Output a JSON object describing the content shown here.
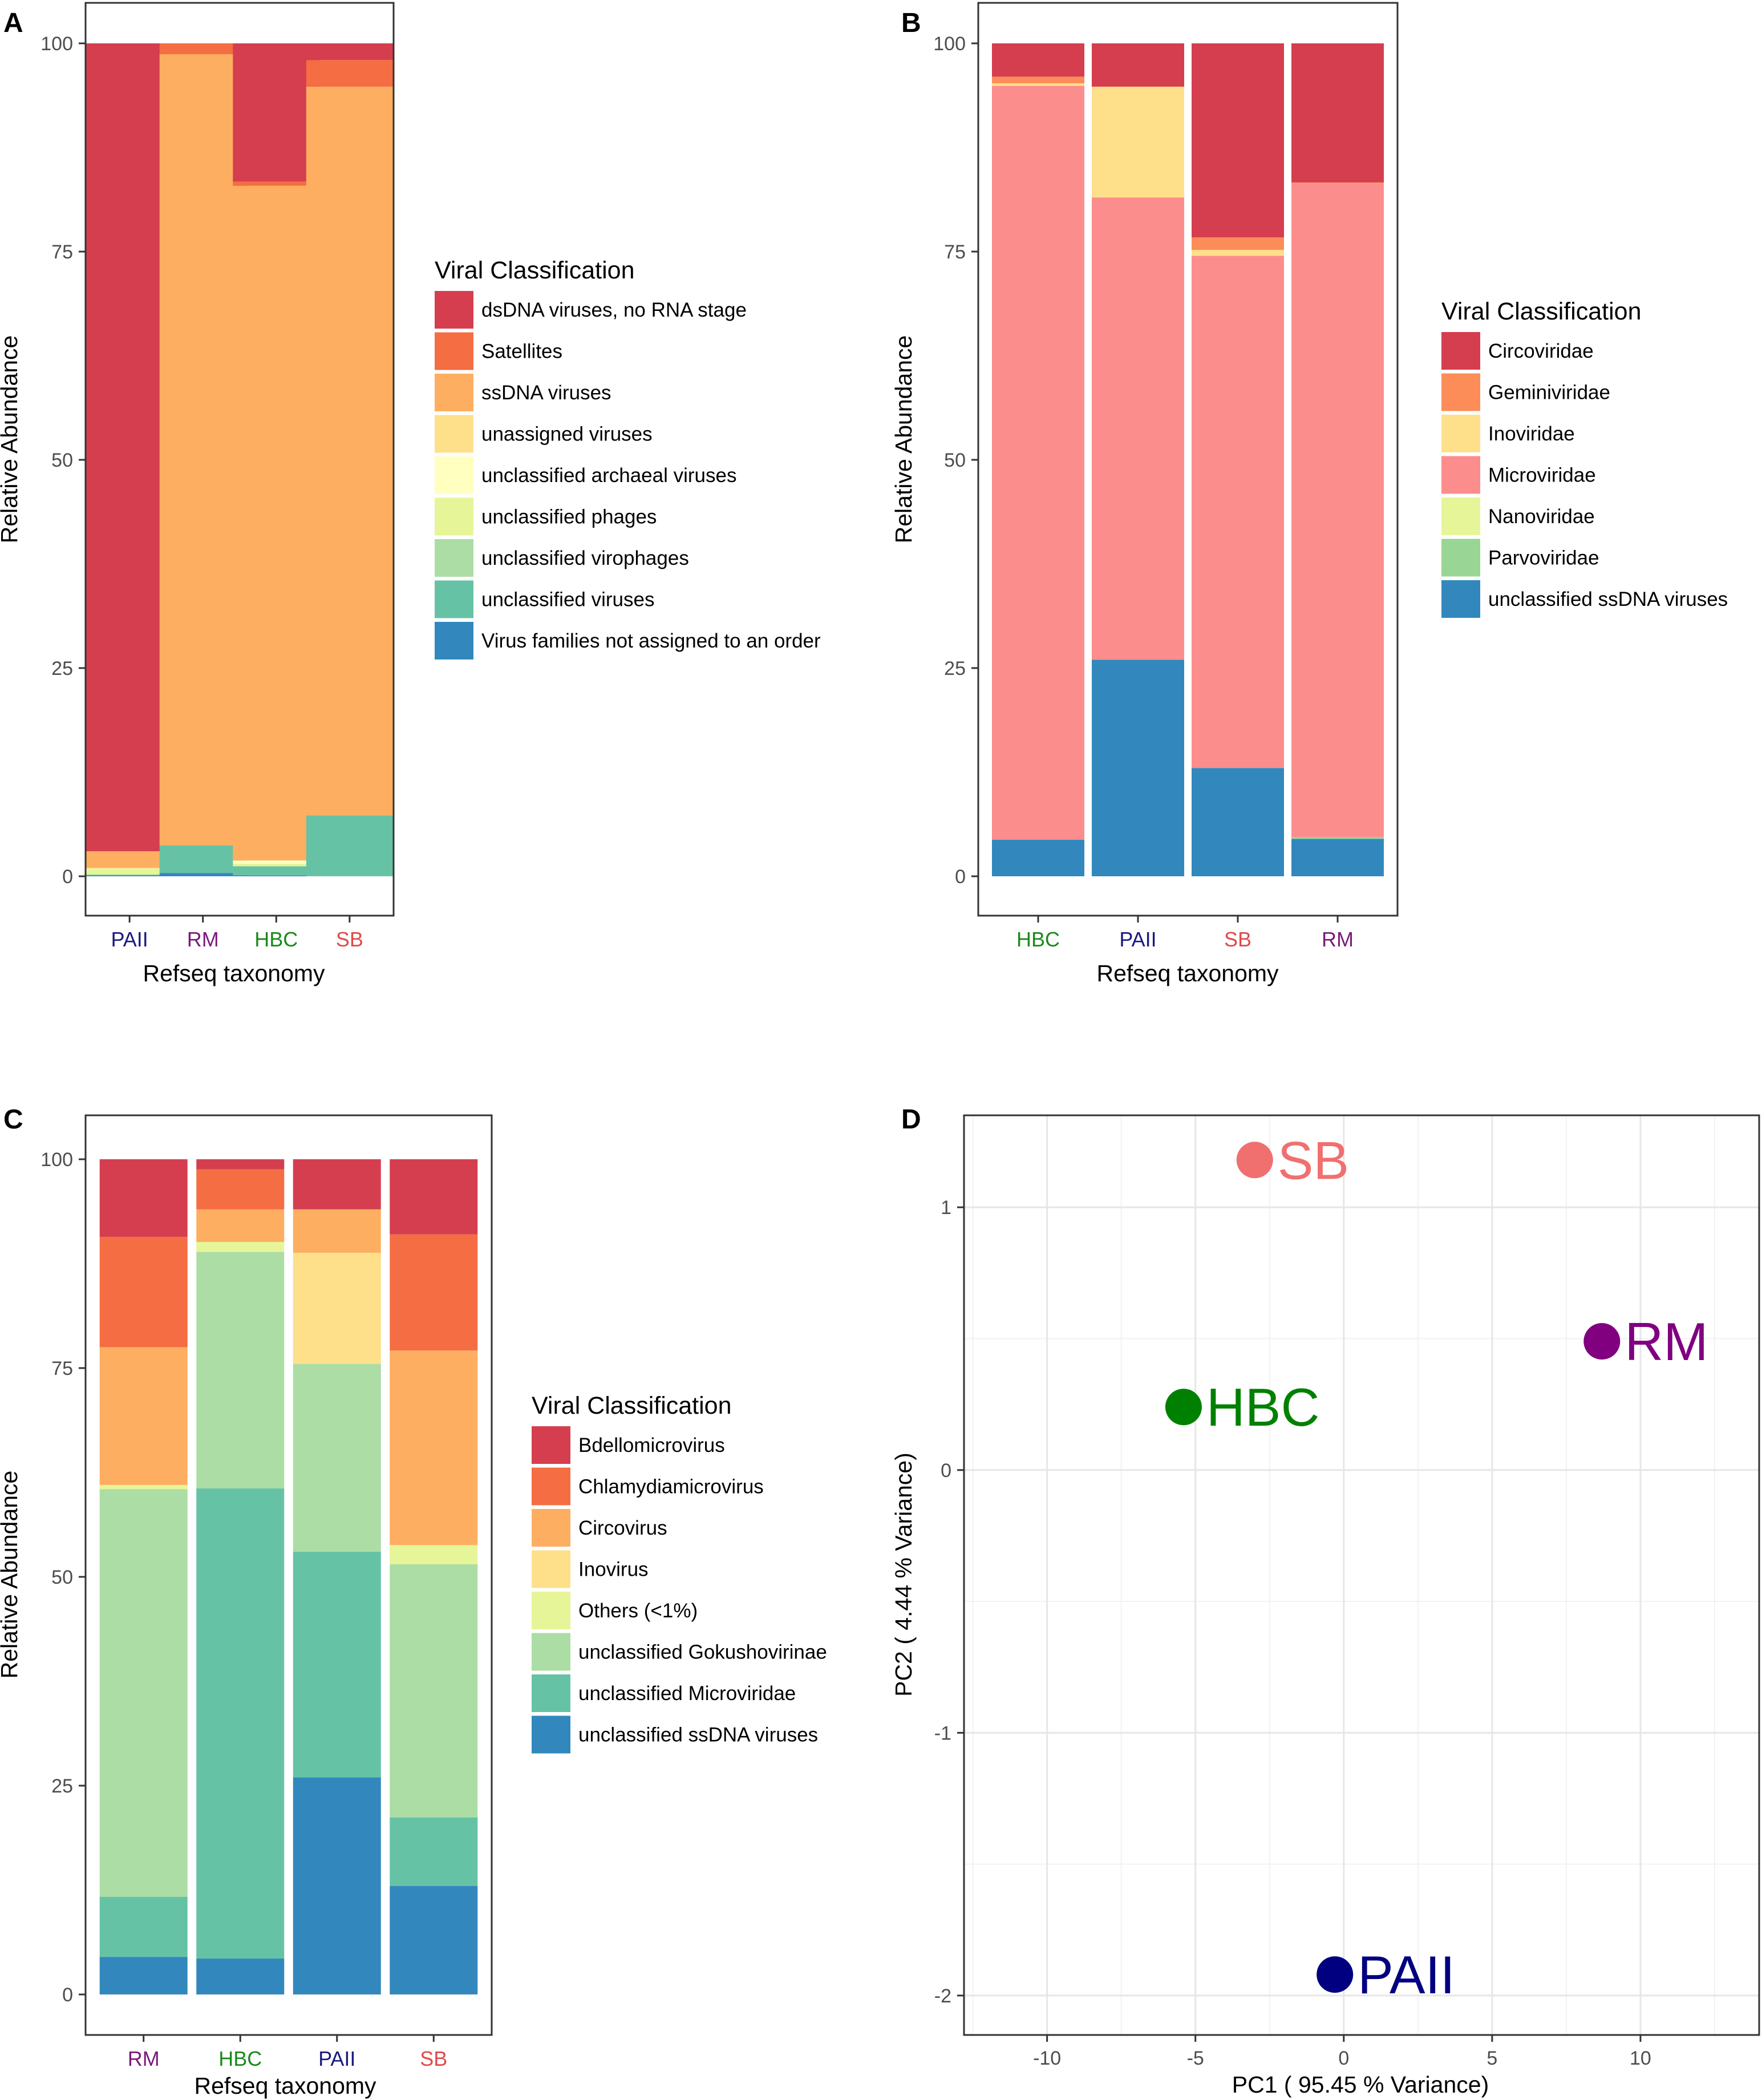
{
  "panels": [
    {
      "label": "A",
      "chart_data": {
        "type": "bar",
        "stacked": true,
        "xlabel": "Refseq taxonomy",
        "ylabel": "Relative Abundance",
        "ylim": [
          0,
          100
        ],
        "yticks": [
          "0",
          "25",
          "50",
          "75",
          "100"
        ],
        "categories": [
          "PAII",
          "RM",
          "HBC",
          "SB"
        ],
        "category_colors": [
          "#1a1a80",
          "#7a1a7a",
          "#1a8a1a",
          "#e04a4a"
        ],
        "legend_title": "Viral Classification",
        "series": [
          {
            "name": "Virus families not assigned to an order",
            "color": "#3288bd",
            "values": [
              0.1,
              0.4,
              0.1,
              0
            ]
          },
          {
            "name": "unclassified viruses",
            "color": "#66c2a5",
            "values": [
              0.1,
              3.3,
              1.1,
              7.3
            ]
          },
          {
            "name": "unclassified virophages",
            "color": "#abdda4",
            "values": [
              0,
              0,
              0,
              0
            ]
          },
          {
            "name": "unclassified phages",
            "color": "#e6f598",
            "values": [
              0.8,
              0,
              0.3,
              0
            ]
          },
          {
            "name": "unclassified archaeal viruses",
            "color": "#ffffbf",
            "values": [
              0,
              0,
              0.4,
              0
            ]
          },
          {
            "name": "unassigned viruses",
            "color": "#fee08b",
            "values": [
              0,
              0,
              0,
              0
            ]
          },
          {
            "name": "ssDNA viruses",
            "color": "#fdae61",
            "values": [
              2,
              95,
              81,
              87.5
            ]
          },
          {
            "name": "Satellites",
            "color": "#f46d43",
            "values": [
              0,
              1.3,
              0.5,
              3.2
            ]
          },
          {
            "name": "dsDNA viruses, no RNA stage",
            "color": "#d53e4f",
            "values": [
              97,
              0,
              16.6,
              2
            ]
          }
        ],
        "legend_order": [
          "dsDNA viruses, no RNA stage",
          "Satellites",
          "ssDNA viruses",
          "unassigned viruses",
          "unclassified archaeal viruses",
          "unclassified phages",
          "unclassified virophages",
          "unclassified viruses",
          "Virus families not assigned to an order"
        ]
      }
    },
    {
      "label": "B",
      "chart_data": {
        "type": "bar",
        "stacked": true,
        "xlabel": "Refseq taxonomy",
        "ylabel": "Relative Abundance",
        "ylim": [
          0,
          100
        ],
        "yticks": [
          "0",
          "25",
          "50",
          "75",
          "100"
        ],
        "categories": [
          "HBC",
          "PAII",
          "SB",
          "RM"
        ],
        "category_colors": [
          "#1a8a1a",
          "#1a1a80",
          "#e04a4a",
          "#7a1a7a"
        ],
        "legend_title": "Viral Classification",
        "series": [
          {
            "name": "unclassified ssDNA viruses",
            "color": "#3288bd",
            "values": [
              4.4,
              26,
              13,
              4.5
            ]
          },
          {
            "name": "Parvoviridae",
            "color": "#99d594",
            "values": [
              0,
              0,
              0,
              0.2
            ]
          },
          {
            "name": "Nanoviridae",
            "color": "#e6f598",
            "values": [
              0,
              0,
              0,
              0
            ]
          },
          {
            "name": "Microviridae",
            "color": "#fc8d8d",
            "values": [
              90.5,
              55.5,
              61.5,
              78.5
            ]
          },
          {
            "name": "Inoviridae",
            "color": "#fee08b",
            "values": [
              0.3,
              13.3,
              0.7,
              0
            ]
          },
          {
            "name": "Geminiviridae",
            "color": "#fc8d59",
            "values": [
              0.8,
              0,
              1.5,
              0.1
            ]
          },
          {
            "name": "Circoviridae",
            "color": "#d53e4f",
            "values": [
              4,
              5.2,
              23.3,
              16.7
            ]
          }
        ],
        "legend_order": [
          "Circoviridae",
          "Geminiviridae",
          "Inoviridae",
          "Microviridae",
          "Nanoviridae",
          "Parvoviridae",
          "unclassified ssDNA viruses"
        ]
      }
    },
    {
      "label": "C",
      "chart_data": {
        "type": "bar",
        "stacked": true,
        "xlabel": "Refseq taxonomy",
        "ylabel": "Relative Abundance",
        "ylim": [
          0,
          100
        ],
        "yticks": [
          "0",
          "25",
          "50",
          "75",
          "100"
        ],
        "categories": [
          "RM",
          "HBC",
          "PAII",
          "SB"
        ],
        "category_colors": [
          "#7a1a7a",
          "#1a8a1a",
          "#1a1a80",
          "#e04a4a"
        ],
        "legend_title": "Viral Classification",
        "series": [
          {
            "name": "unclassified ssDNA viruses",
            "color": "#3288bd",
            "values": [
              4.5,
              4.3,
              26,
              13
            ]
          },
          {
            "name": "unclassified Microviridae",
            "color": "#66c2a5",
            "values": [
              7.2,
              56.3,
              27,
              8.2
            ]
          },
          {
            "name": "unclassified Gokushovirinae",
            "color": "#abdda4",
            "values": [
              48.8,
              28.3,
              22.5,
              30.3
            ]
          },
          {
            "name": "Others (<1%)",
            "color": "#e6f598",
            "values": [
              0.5,
              1.2,
              0,
              2.3
            ]
          },
          {
            "name": "Inovirus",
            "color": "#fee08b",
            "values": [
              0,
              0,
              13.3,
              0
            ]
          },
          {
            "name": "Circovirus",
            "color": "#fdae61",
            "values": [
              16.5,
              3.9,
              5.2,
              23.3
            ]
          },
          {
            "name": "Chlamydiamicrovirus",
            "color": "#f46d43",
            "values": [
              13.2,
              4.8,
              0,
              13.9
            ]
          },
          {
            "name": "Bdellomicrovirus",
            "color": "#d53e4f",
            "values": [
              9.3,
              1.2,
              6,
              9
            ]
          }
        ],
        "legend_order": [
          "Bdellomicrovirus",
          "Chlamydiamicrovirus",
          "Circovirus",
          "Inovirus",
          "Others (<1%)",
          "unclassified Gokushovirinae",
          "unclassified Microviridae",
          "unclassified ssDNA viruses"
        ]
      }
    },
    {
      "label": "D",
      "chart_data": {
        "type": "scatter",
        "xlabel": "PC1 ( 95.45  % Variance)",
        "ylabel": "PC2 ( 4.44  % Variance)",
        "xlim": [
          -12.8,
          14
        ],
        "ylim": [
          -2.15,
          1.35
        ],
        "xticks": [
          "-10",
          "-5",
          "0",
          "5",
          "10"
        ],
        "yticks": [
          "-2",
          "-1",
          "0",
          "1"
        ],
        "points": [
          {
            "label": "SB",
            "x": -3.0,
            "y": 1.18,
            "color": "#f07070"
          },
          {
            "label": "RM",
            "x": 8.7,
            "y": 0.49,
            "color": "#800080"
          },
          {
            "label": "HBC",
            "x": -5.4,
            "y": 0.24,
            "color": "#008000"
          },
          {
            "label": "PAII",
            "x": -0.3,
            "y": -1.92,
            "color": "#000080"
          }
        ]
      }
    }
  ]
}
